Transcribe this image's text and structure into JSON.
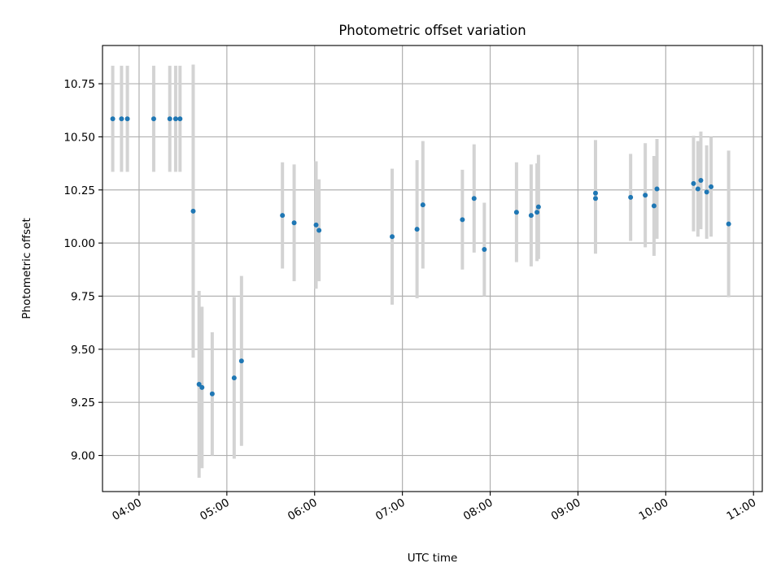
{
  "chart_data": {
    "type": "scatter",
    "title": "Photometric offset variation",
    "xlabel": "UTC time",
    "ylabel": "Photometric offset",
    "grid": true,
    "x_tick_labels": [
      "04:00",
      "05:00",
      "06:00",
      "07:00",
      "08:00",
      "09:00",
      "10:00",
      "11:00"
    ],
    "y_tick_labels": [
      "9.00",
      "9.25",
      "9.50",
      "9.75",
      "10.00",
      "10.25",
      "10.50",
      "10.75"
    ],
    "xlim": [
      "03:35",
      "11:06"
    ],
    "ylim": [
      8.83,
      10.93
    ],
    "colors": {
      "point": "#1f77b4",
      "errorbar": "#d3d3d3",
      "grid": "#b0b0b0"
    },
    "points": [
      {
        "t": "03:42",
        "y": 10.585,
        "yerr": 0.25
      },
      {
        "t": "03:48",
        "y": 10.585,
        "yerr": 0.25
      },
      {
        "t": "03:52",
        "y": 10.585,
        "yerr": 0.25
      },
      {
        "t": "04:10",
        "y": 10.585,
        "yerr": 0.25
      },
      {
        "t": "04:21",
        "y": 10.585,
        "yerr": 0.25
      },
      {
        "t": "04:25",
        "y": 10.585,
        "yerr": 0.25
      },
      {
        "t": "04:28",
        "y": 10.585,
        "yerr": 0.25
      },
      {
        "t": "04:37",
        "y": 10.15,
        "yerr": 0.69
      },
      {
        "t": "04:41",
        "y": 9.335,
        "yerr": 0.44
      },
      {
        "t": "04:43",
        "y": 9.32,
        "yerr": 0.38
      },
      {
        "t": "04:50",
        "y": 9.29,
        "yerr": 0.29
      },
      {
        "t": "05:05",
        "y": 9.365,
        "yerr": 0.38
      },
      {
        "t": "05:10",
        "y": 9.445,
        "yerr": 0.4
      },
      {
        "t": "05:38",
        "y": 10.13,
        "yerr": 0.25
      },
      {
        "t": "05:46",
        "y": 10.095,
        "yerr": 0.275
      },
      {
        "t": "06:01",
        "y": 10.085,
        "yerr": 0.3
      },
      {
        "t": "06:03",
        "y": 10.06,
        "yerr": 0.24
      },
      {
        "t": "06:53",
        "y": 10.03,
        "yerr": 0.32
      },
      {
        "t": "07:10",
        "y": 10.065,
        "yerr": 0.325
      },
      {
        "t": "07:14",
        "y": 10.18,
        "yerr": 0.3
      },
      {
        "t": "07:41",
        "y": 10.11,
        "yerr": 0.235
      },
      {
        "t": "07:49",
        "y": 10.21,
        "yerr": 0.255
      },
      {
        "t": "07:56",
        "y": 9.97,
        "yerr": 0.22
      },
      {
        "t": "08:18",
        "y": 10.145,
        "yerr": 0.235
      },
      {
        "t": "08:28",
        "y": 10.13,
        "yerr": 0.24
      },
      {
        "t": "08:32",
        "y": 10.145,
        "yerr": 0.23
      },
      {
        "t": "08:33",
        "y": 10.17,
        "yerr": 0.245
      },
      {
        "t": "09:12",
        "y": 10.21,
        "yerr": 0.26
      },
      {
        "t": "09:12",
        "y": 10.235,
        "yerr": 0.25
      },
      {
        "t": "09:36",
        "y": 10.215,
        "yerr": 0.205
      },
      {
        "t": "09:46",
        "y": 10.225,
        "yerr": 0.245
      },
      {
        "t": "09:52",
        "y": 10.175,
        "yerr": 0.235
      },
      {
        "t": "09:54",
        "y": 10.255,
        "yerr": 0.235
      },
      {
        "t": "10:19",
        "y": 10.28,
        "yerr": 0.225
      },
      {
        "t": "10:22",
        "y": 10.255,
        "yerr": 0.225
      },
      {
        "t": "10:24",
        "y": 10.295,
        "yerr": 0.23
      },
      {
        "t": "10:28",
        "y": 10.24,
        "yerr": 0.22
      },
      {
        "t": "10:31",
        "y": 10.265,
        "yerr": 0.235
      },
      {
        "t": "10:43",
        "y": 10.09,
        "yerr": 0.345
      }
    ]
  }
}
